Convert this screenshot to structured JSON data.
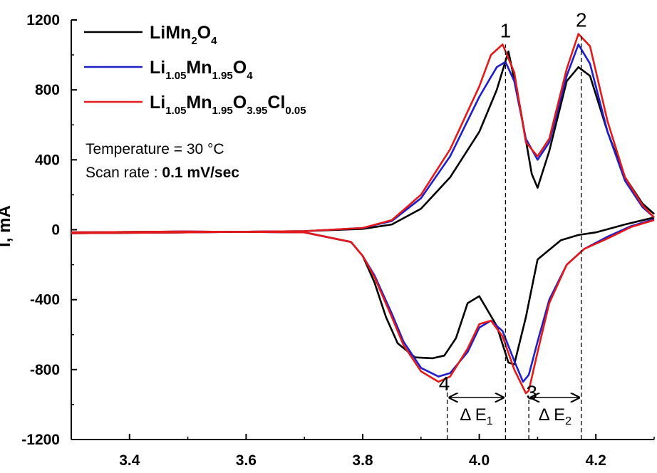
{
  "chart_data": {
    "type": "line",
    "xlim": [
      3.3,
      4.3
    ],
    "ylim": [
      -1200,
      1200
    ],
    "x_ticks": [
      "3.4",
      "3.6",
      "3.8",
      "4.0",
      "4.2"
    ],
    "x_tick_values": [
      3.4,
      3.6,
      3.8,
      4.0,
      4.2
    ],
    "y_ticks": [
      "1200",
      "800",
      "400",
      "0",
      "-400",
      "-800",
      "-1200"
    ],
    "y_tick_values": [
      1200,
      800,
      400,
      0,
      -400,
      -800,
      -1200
    ],
    "ylabel": "I, mA",
    "legend_position": "top-left",
    "series": [
      {
        "name": "LiMn2O4",
        "legend": {
          "parts": [
            [
              "LiMn",
              ""
            ],
            [
              "2",
              "sub"
            ],
            [
              "O",
              ""
            ],
            [
              "4",
              "sub"
            ]
          ]
        },
        "color": "#000000",
        "anodic": [
          [
            3.3,
            -20
          ],
          [
            3.5,
            -15
          ],
          [
            3.7,
            -8
          ],
          [
            3.8,
            5
          ],
          [
            3.85,
            30
          ],
          [
            3.9,
            120
          ],
          [
            3.95,
            300
          ],
          [
            4.0,
            560
          ],
          [
            4.03,
            800
          ],
          [
            4.05,
            1020
          ],
          [
            4.07,
            700
          ],
          [
            4.09,
            320
          ],
          [
            4.1,
            240
          ],
          [
            4.12,
            450
          ],
          [
            4.15,
            850
          ],
          [
            4.17,
            930
          ],
          [
            4.19,
            880
          ],
          [
            4.22,
            560
          ],
          [
            4.25,
            300
          ],
          [
            4.28,
            150
          ],
          [
            4.3,
            90
          ]
        ],
        "cathodic": [
          [
            4.3,
            70
          ],
          [
            4.25,
            30
          ],
          [
            4.2,
            -15
          ],
          [
            4.17,
            -30
          ],
          [
            4.14,
            -60
          ],
          [
            4.1,
            -170
          ],
          [
            4.08,
            -500
          ],
          [
            4.06,
            -770
          ],
          [
            4.05,
            -760
          ],
          [
            4.03,
            -550
          ],
          [
            4.0,
            -380
          ],
          [
            3.98,
            -420
          ],
          [
            3.96,
            -620
          ],
          [
            3.94,
            -720
          ],
          [
            3.92,
            -735
          ],
          [
            3.89,
            -730
          ],
          [
            3.86,
            -650
          ],
          [
            3.84,
            -500
          ],
          [
            3.82,
            -300
          ],
          [
            3.8,
            -150
          ],
          [
            3.78,
            -70
          ],
          [
            3.7,
            -15
          ],
          [
            3.5,
            -10
          ],
          [
            3.3,
            -15
          ]
        ]
      },
      {
        "name": "Li1.05Mn1.95O4",
        "legend": {
          "parts": [
            [
              "Li",
              ""
            ],
            [
              "1.05",
              "sub"
            ],
            [
              "Mn",
              ""
            ],
            [
              "1.95",
              "sub"
            ],
            [
              "O",
              ""
            ],
            [
              "4",
              "sub"
            ]
          ]
        },
        "color": "#1f1fc8",
        "anodic": [
          [
            3.3,
            -20
          ],
          [
            3.5,
            -15
          ],
          [
            3.7,
            -8
          ],
          [
            3.8,
            10
          ],
          [
            3.85,
            50
          ],
          [
            3.9,
            180
          ],
          [
            3.95,
            420
          ],
          [
            4.0,
            760
          ],
          [
            4.03,
            930
          ],
          [
            4.045,
            960
          ],
          [
            4.06,
            850
          ],
          [
            4.08,
            520
          ],
          [
            4.1,
            400
          ],
          [
            4.12,
            500
          ],
          [
            4.15,
            880
          ],
          [
            4.17,
            1060
          ],
          [
            4.19,
            950
          ],
          [
            4.22,
            560
          ],
          [
            4.25,
            280
          ],
          [
            4.28,
            130
          ],
          [
            4.3,
            70
          ]
        ],
        "cathodic": [
          [
            4.3,
            60
          ],
          [
            4.26,
            20
          ],
          [
            4.22,
            -40
          ],
          [
            4.18,
            -110
          ],
          [
            4.15,
            -200
          ],
          [
            4.12,
            -400
          ],
          [
            4.1,
            -640
          ],
          [
            4.085,
            -830
          ],
          [
            4.075,
            -870
          ],
          [
            4.06,
            -750
          ],
          [
            4.04,
            -580
          ],
          [
            4.02,
            -520
          ],
          [
            4.0,
            -560
          ],
          [
            3.98,
            -700
          ],
          [
            3.95,
            -820
          ],
          [
            3.93,
            -840
          ],
          [
            3.9,
            -790
          ],
          [
            3.87,
            -640
          ],
          [
            3.85,
            -480
          ],
          [
            3.82,
            -260
          ],
          [
            3.8,
            -150
          ],
          [
            3.78,
            -70
          ],
          [
            3.7,
            -15
          ],
          [
            3.5,
            -10
          ],
          [
            3.3,
            -15
          ]
        ]
      },
      {
        "name": "Li1.05Mn1.95O3.95Cl0.05",
        "legend": {
          "parts": [
            [
              "Li",
              ""
            ],
            [
              "1.05",
              "sub"
            ],
            [
              "Mn",
              ""
            ],
            [
              "1.95",
              "sub"
            ],
            [
              "O",
              ""
            ],
            [
              "3.95",
              "sub"
            ],
            [
              "Cl",
              ""
            ],
            [
              "0.05",
              "sub"
            ]
          ]
        },
        "color": "#e41a1a",
        "anodic": [
          [
            3.3,
            -20
          ],
          [
            3.5,
            -15
          ],
          [
            3.7,
            -8
          ],
          [
            3.8,
            10
          ],
          [
            3.85,
            55
          ],
          [
            3.9,
            200
          ],
          [
            3.95,
            460
          ],
          [
            4.0,
            820
          ],
          [
            4.02,
            1000
          ],
          [
            4.04,
            1060
          ],
          [
            4.06,
            900
          ],
          [
            4.08,
            500
          ],
          [
            4.1,
            420
          ],
          [
            4.12,
            520
          ],
          [
            4.15,
            920
          ],
          [
            4.17,
            1120
          ],
          [
            4.19,
            1050
          ],
          [
            4.22,
            620
          ],
          [
            4.25,
            300
          ],
          [
            4.28,
            140
          ],
          [
            4.3,
            70
          ]
        ],
        "cathodic": [
          [
            4.3,
            55
          ],
          [
            4.26,
            15
          ],
          [
            4.22,
            -50
          ],
          [
            4.18,
            -110
          ],
          [
            4.15,
            -200
          ],
          [
            4.12,
            -420
          ],
          [
            4.1,
            -700
          ],
          [
            4.085,
            -920
          ],
          [
            4.08,
            -935
          ],
          [
            4.06,
            -800
          ],
          [
            4.04,
            -610
          ],
          [
            4.02,
            -520
          ],
          [
            4.0,
            -540
          ],
          [
            3.98,
            -680
          ],
          [
            3.95,
            -840
          ],
          [
            3.93,
            -870
          ],
          [
            3.9,
            -810
          ],
          [
            3.87,
            -660
          ],
          [
            3.85,
            -500
          ],
          [
            3.82,
            -270
          ],
          [
            3.8,
            -150
          ],
          [
            3.78,
            -70
          ],
          [
            3.7,
            -15
          ],
          [
            3.5,
            -10
          ],
          [
            3.3,
            -15
          ]
        ]
      }
    ],
    "annotations": {
      "temperature": "Temperature = 30 °C",
      "scan_rate_prefix": "Scan rate : ",
      "scan_rate_value": "0.1 mV/sec",
      "peak_labels": [
        {
          "text": "1",
          "x": 4.045,
          "y": 1060
        },
        {
          "text": "2",
          "x": 4.175,
          "y": 1120
        },
        {
          "text": "3",
          "x": 4.09,
          "y": -1010
        },
        {
          "text": "4",
          "x": 3.94,
          "y": -960
        }
      ],
      "dashed_lines": [
        {
          "x": 4.045,
          "y_from": -1200,
          "y_to": 1060
        },
        {
          "x": 4.175,
          "y_from": -1200,
          "y_to": 1120
        },
        {
          "x": 3.945,
          "y_from": -1200,
          "y_to": -900
        },
        {
          "x": 4.085,
          "y_from": -1200,
          "y_to": -950
        }
      ],
      "delta_e1": {
        "label": "Δ E",
        "sub": "1",
        "x_from": 3.945,
        "x_to": 4.045,
        "y": -960
      },
      "delta_e2": {
        "label": "Δ E",
        "sub": "2",
        "x_from": 4.085,
        "x_to": 4.175,
        "y": -960
      }
    }
  }
}
